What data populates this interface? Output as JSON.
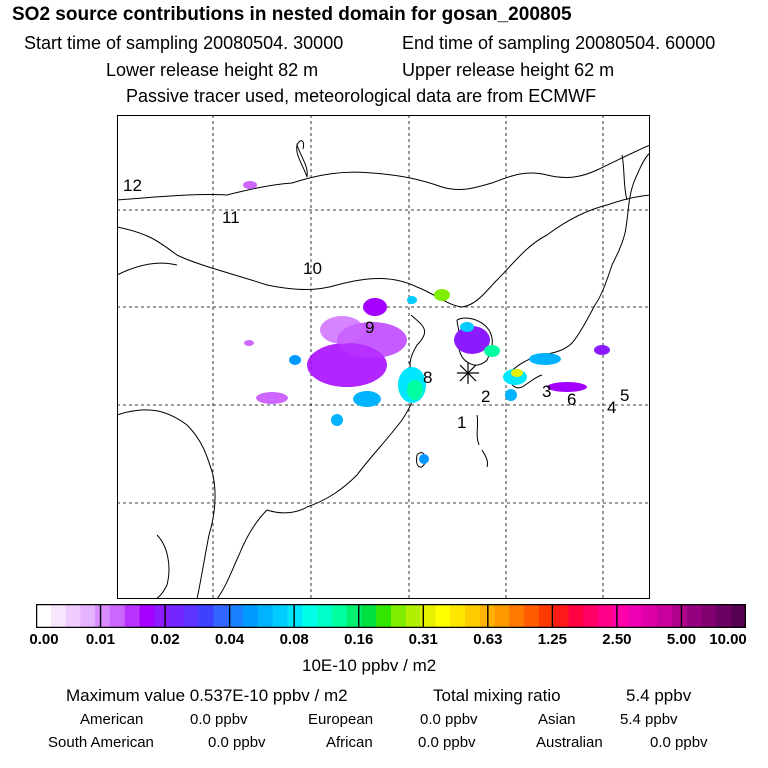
{
  "header": {
    "title": "SO2 source contributions in nested domain for gosan_200805",
    "start_time": "Start time of sampling 20080504. 30000",
    "end_time": "End time of sampling 20080504. 60000",
    "lower_height": "Lower release height   82 m",
    "upper_height": "Upper release height   62 m",
    "note": "Passive tracer used, meteorological data are from ECMWF"
  },
  "map": {
    "region_labels": [
      "1",
      "2",
      "3",
      "4",
      "5",
      "6",
      "8",
      "9",
      "10",
      "11",
      "12"
    ]
  },
  "colorbar": {
    "ticks": [
      "0.00",
      "0.01",
      "0.02",
      "0.04",
      "0.08",
      "0.16",
      "0.31",
      "0.63",
      "1.25",
      "2.50",
      "5.00",
      "10.00"
    ],
    "colors": [
      "#ffffff",
      "#f8e6ff",
      "#f0ccff",
      "#e6b3ff",
      "#d98cff",
      "#cc66ff",
      "#b833ff",
      "#a300ff",
      "#8c1aff",
      "#7326ff",
      "#5c33ff",
      "#4040ff",
      "#3366ff",
      "#1a80ff",
      "#0099ff",
      "#00b3ff",
      "#00ccff",
      "#00e6ff",
      "#00ffe6",
      "#00ffc8",
      "#00ffa0",
      "#00f070",
      "#00e040",
      "#33e600",
      "#80ee00",
      "#b3f000",
      "#e6f000",
      "#ffff00",
      "#ffe600",
      "#ffcc00",
      "#ffb300",
      "#ff9900",
      "#ff7a00",
      "#ff5c00",
      "#ff3a00",
      "#ff1a1a",
      "#ff0040",
      "#ff0066",
      "#ff0088",
      "#ff00aa",
      "#f000b3",
      "#e000a8",
      "#c8009c",
      "#b0008c",
      "#960080",
      "#800070",
      "#6a0060",
      "#550050"
    ],
    "units": "10E-10 ppbv / m2"
  },
  "summary": {
    "max_value": "Maximum value  0.537E-10 ppbv / m2",
    "total_label": "Total mixing ratio",
    "total_value": "5.4 ppbv",
    "regions": [
      {
        "name": "American",
        "value": "0.0 ppbv"
      },
      {
        "name": "European",
        "value": "0.0 ppbv"
      },
      {
        "name": "Asian",
        "value": "5.4 ppbv"
      },
      {
        "name": "South American",
        "value": "0.0 ppbv"
      },
      {
        "name": "African",
        "value": "0.0 ppbv"
      },
      {
        "name": "Australian",
        "value": "0.0 ppbv"
      }
    ]
  }
}
